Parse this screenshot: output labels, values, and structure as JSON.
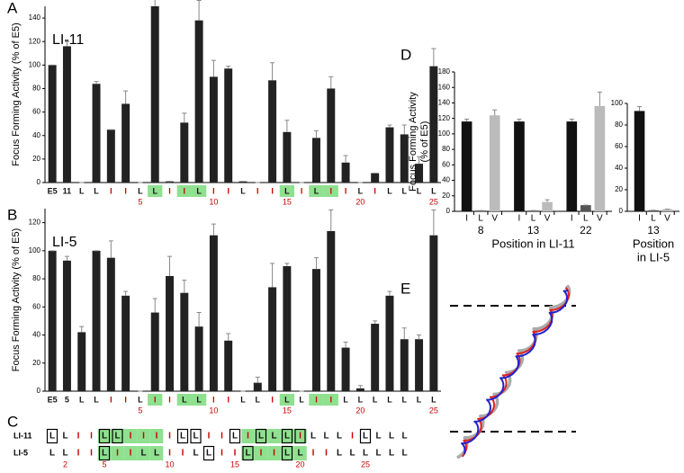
{
  "panel_labels": [
    "A",
    "B",
    "C",
    "D",
    "E"
  ],
  "chart_data": [
    {
      "type": "bar",
      "title": "LI-11",
      "y_label": [
        "Focus Forming Activity (% of E5)"
      ],
      "categories": [
        "E5",
        "11",
        "L",
        "L",
        "I",
        "I",
        "L",
        "L",
        "I",
        "I",
        "L",
        "I",
        "I",
        "L",
        "I",
        "I",
        "L",
        "I",
        "L",
        "I",
        "I",
        "L",
        "I",
        "L",
        "L",
        "L",
        "L"
      ],
      "category_colors": [
        "#111",
        "#111",
        "#111",
        "#111",
        "#c00",
        "#c00",
        "#111",
        "#111",
        "#c00",
        "#c00",
        "#111",
        "#c00",
        "#c00",
        "#111",
        "#c00",
        "#c00",
        "#111",
        "#c00",
        "#111",
        "#c00",
        "#c00",
        "#111",
        "#c00",
        "#111",
        "#111",
        "#111",
        "#111"
      ],
      "residue_numbers": [
        null,
        null,
        null,
        null,
        null,
        null,
        "5",
        null,
        null,
        null,
        null,
        "10",
        null,
        null,
        null,
        null,
        "15",
        null,
        null,
        null,
        null,
        "20",
        null,
        null,
        null,
        null,
        "25"
      ],
      "highlight": [
        7,
        9,
        10,
        16,
        18,
        19
      ],
      "values": [
        100,
        116,
        0,
        84,
        45,
        67,
        0,
        150,
        1,
        51,
        138,
        90,
        97,
        1,
        0,
        87,
        43,
        0,
        38,
        80,
        17,
        0,
        8,
        47,
        41,
        16,
        99
      ],
      "errors": [
        0,
        4,
        0,
        2,
        0,
        11,
        0,
        8,
        0,
        8,
        17,
        14,
        2,
        0,
        0,
        15,
        10,
        0,
        6,
        10,
        6,
        0,
        0,
        2,
        8,
        6,
        15
      ],
      "color": "#222",
      "ylim": [
        0,
        150
      ],
      "yticks": [
        0,
        20,
        40,
        60,
        80,
        100,
        120,
        140
      ]
    },
    {
      "type": "bar",
      "title": "LI-5",
      "y_label": [
        "Focus Forming Activity (% of E5)"
      ],
      "categories": [
        "E5",
        "5",
        "L",
        "L",
        "I",
        "I",
        "L",
        "I",
        "I",
        "L",
        "L",
        "I",
        "I",
        "L",
        "L",
        "I",
        "L",
        "L",
        "I",
        "I",
        "L",
        "L",
        "L",
        "L",
        "L",
        "L",
        "L"
      ],
      "category_colors": [
        "#111",
        "#111",
        "#111",
        "#111",
        "#c00",
        "#c00",
        "#111",
        "#c00",
        "#c00",
        "#111",
        "#111",
        "#c00",
        "#c00",
        "#111",
        "#111",
        "#c00",
        "#111",
        "#111",
        "#c00",
        "#c00",
        "#111",
        "#111",
        "#111",
        "#111",
        "#111",
        "#111",
        "#111"
      ],
      "residue_numbers": [
        null,
        null,
        null,
        null,
        null,
        null,
        "5",
        null,
        null,
        null,
        null,
        "10",
        null,
        null,
        null,
        null,
        "15",
        null,
        null,
        null,
        null,
        "20",
        null,
        null,
        null,
        null,
        "25"
      ],
      "highlight": [
        7,
        9,
        10,
        16,
        18,
        19
      ],
      "values": [
        100,
        93,
        42,
        100,
        95,
        68,
        0,
        56,
        82,
        70,
        46,
        111,
        36,
        0,
        6,
        74,
        89,
        0,
        87,
        114,
        31,
        2,
        48,
        68,
        37,
        37,
        111
      ],
      "errors": [
        0,
        3,
        4,
        0,
        12,
        3,
        0,
        10,
        14,
        9,
        10,
        8,
        5,
        0,
        4,
        17,
        2,
        0,
        8,
        15,
        4,
        2,
        2,
        3,
        8,
        3,
        18
      ],
      "color": "#222",
      "ylim": [
        0,
        130
      ],
      "yticks": [
        0,
        20,
        40,
        60,
        80,
        100,
        120
      ]
    },
    {
      "type": "bar",
      "y_label": [
        "Focus Forming Activity",
        "(% of E5)"
      ],
      "categories": [
        "8",
        "13",
        "22"
      ],
      "x_label": [
        "Position in LI-11"
      ],
      "series": [
        {
          "name": "I",
          "color": "#111",
          "values": [
            116,
            116,
            116
          ],
          "errors": [
            3,
            3,
            3
          ]
        },
        {
          "name": "L",
          "color": "#555",
          "values": [
            1,
            1,
            8
          ],
          "errors": [
            0,
            0,
            0
          ]
        },
        {
          "name": "V",
          "color": "#bbb",
          "values": [
            124,
            12,
            136
          ],
          "errors": [
            7,
            3,
            18
          ]
        }
      ],
      "ylim": [
        0,
        180
      ],
      "yticks": [
        0,
        20,
        40,
        60,
        80,
        100,
        120,
        140,
        160,
        180
      ]
    },
    {
      "type": "bar",
      "categories": [
        "13"
      ],
      "x_label": [
        "Position",
        "in LI-5"
      ],
      "series": [
        {
          "name": "I",
          "color": "#111",
          "values": [
            93
          ],
          "errors": [
            4
          ]
        },
        {
          "name": "L",
          "color": "#555",
          "values": [
            1
          ],
          "errors": [
            0
          ]
        },
        {
          "name": "V",
          "color": "#bbb",
          "values": [
            2
          ],
          "errors": [
            0
          ]
        }
      ],
      "ylim": [
        0,
        100
      ],
      "yticks": [
        0,
        20,
        40,
        60,
        80,
        100
      ]
    }
  ],
  "sequence_alignment": {
    "rows": [
      {
        "name": "LI-11",
        "residues": [
          "L",
          "L",
          "I",
          "I",
          "L",
          "L",
          "I",
          "I",
          "I",
          "I",
          "L",
          "L",
          "I",
          "I",
          "L",
          "I",
          "L",
          "L",
          "L",
          "I",
          "L",
          "L",
          "L",
          "I",
          "L",
          "L",
          "L",
          "L"
        ],
        "colors": [
          "#111",
          "#111",
          "#c00",
          "#c00",
          "#111",
          "#111",
          "#c00",
          "#c00",
          "#c00",
          "#c00",
          "#111",
          "#111",
          "#c00",
          "#c00",
          "#111",
          "#c00",
          "#111",
          "#111",
          "#111",
          "#c00",
          "#111",
          "#111",
          "#111",
          "#c00",
          "#111",
          "#111",
          "#111",
          "#111"
        ],
        "boxed": [
          0,
          4,
          5,
          10,
          11,
          14,
          16,
          18,
          19,
          24
        ]
      },
      {
        "name": "LI-5",
        "residues": [
          "L",
          "L",
          "I",
          "I",
          "L",
          "I",
          "I",
          "L",
          "L",
          "I",
          "I",
          "L",
          "L",
          "I",
          "I",
          "L",
          "I",
          "I",
          "L",
          "L",
          "I",
          "I",
          "L",
          "L",
          "L",
          "L",
          "L",
          "L"
        ],
        "colors": [
          "#111",
          "#111",
          "#c00",
          "#c00",
          "#111",
          "#c00",
          "#c00",
          "#111",
          "#111",
          "#c00",
          "#c00",
          "#111",
          "#111",
          "#c00",
          "#c00",
          "#111",
          "#c00",
          "#c00",
          "#111",
          "#111",
          "#c00",
          "#c00",
          "#111",
          "#111",
          "#111",
          "#111",
          "#111",
          "#111"
        ],
        "boxed": [
          4,
          12,
          15,
          18
        ]
      }
    ],
    "highlight": [
      4,
      5,
      6,
      7,
      8,
      15,
      16,
      17,
      18,
      19
    ],
    "numbers": [
      null,
      "2",
      null,
      null,
      "5",
      null,
      null,
      null,
      null,
      "10",
      null,
      null,
      null,
      null,
      "15",
      null,
      null,
      null,
      null,
      "20",
      null,
      null,
      null,
      null,
      "25",
      null,
      null,
      null
    ]
  }
}
